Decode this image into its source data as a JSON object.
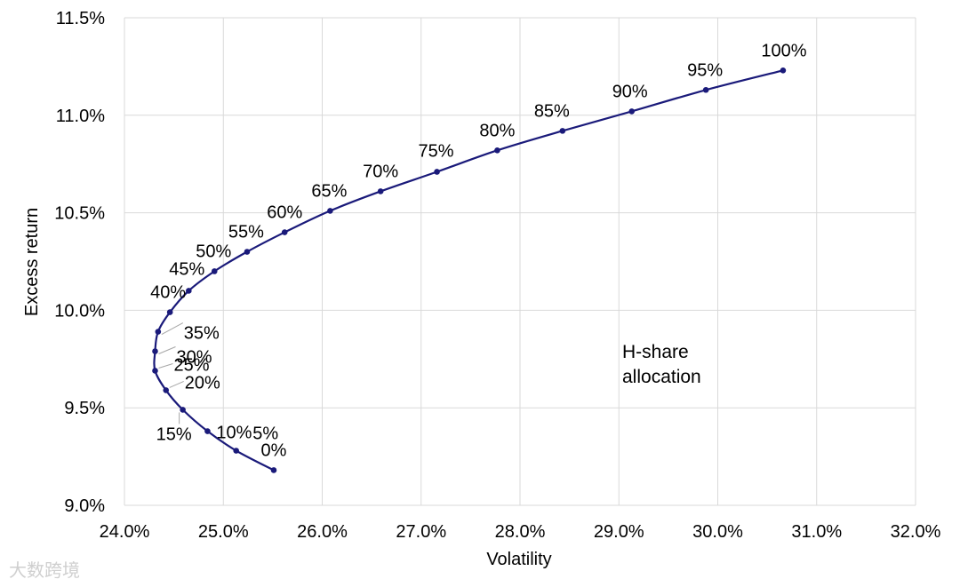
{
  "chart_data": {
    "type": "line",
    "title": "",
    "xlabel": "Volatility",
    "ylabel": "Excess return",
    "xlim": [
      0.24,
      0.32
    ],
    "ylim": [
      0.09,
      0.115
    ],
    "x_ticks": [
      "24.0%",
      "25.0%",
      "26.0%",
      "27.0%",
      "28.0%",
      "29.0%",
      "30.0%",
      "31.0%",
      "32.0%"
    ],
    "y_ticks": [
      "9.0%",
      "9.5%",
      "10.0%",
      "10.5%",
      "11.0%",
      "11.5%"
    ],
    "grid": true,
    "line_color": "#1a1a7a",
    "annotation": [
      "H-share",
      "allocation"
    ],
    "series": [
      {
        "points": [
          {
            "label": "0%",
            "x": 0.2551,
            "y": 0.0918
          },
          {
            "label": "5%",
            "x": 0.2513,
            "y": 0.0928
          },
          {
            "label": "10%",
            "x": 0.2484,
            "y": 0.0938
          },
          {
            "label": "15%",
            "x": 0.2459,
            "y": 0.0949
          },
          {
            "label": "20%",
            "x": 0.2442,
            "y": 0.0959
          },
          {
            "label": "25%",
            "x": 0.2431,
            "y": 0.0969
          },
          {
            "label": "30%",
            "x": 0.2431,
            "y": 0.0979
          },
          {
            "label": "35%",
            "x": 0.2434,
            "y": 0.0989
          },
          {
            "label": "40%",
            "x": 0.2446,
            "y": 0.0999
          },
          {
            "label": "45%",
            "x": 0.2465,
            "y": 0.101
          },
          {
            "label": "50%",
            "x": 0.2491,
            "y": 0.102
          },
          {
            "label": "55%",
            "x": 0.2524,
            "y": 0.103
          },
          {
            "label": "60%",
            "x": 0.2562,
            "y": 0.104
          },
          {
            "label": "65%",
            "x": 0.2608,
            "y": 0.1051
          },
          {
            "label": "70%",
            "x": 0.2659,
            "y": 0.1061
          },
          {
            "label": "75%",
            "x": 0.2716,
            "y": 0.1071
          },
          {
            "label": "80%",
            "x": 0.2777,
            "y": 0.1082
          },
          {
            "label": "85%",
            "x": 0.2843,
            "y": 0.1092
          },
          {
            "label": "90%",
            "x": 0.2913,
            "y": 0.1102
          },
          {
            "label": "95%",
            "x": 0.2988,
            "y": 0.1113
          },
          {
            "label": "100%",
            "x": 0.3066,
            "y": 0.1123
          }
        ]
      }
    ]
  },
  "watermark": "大数跨境"
}
